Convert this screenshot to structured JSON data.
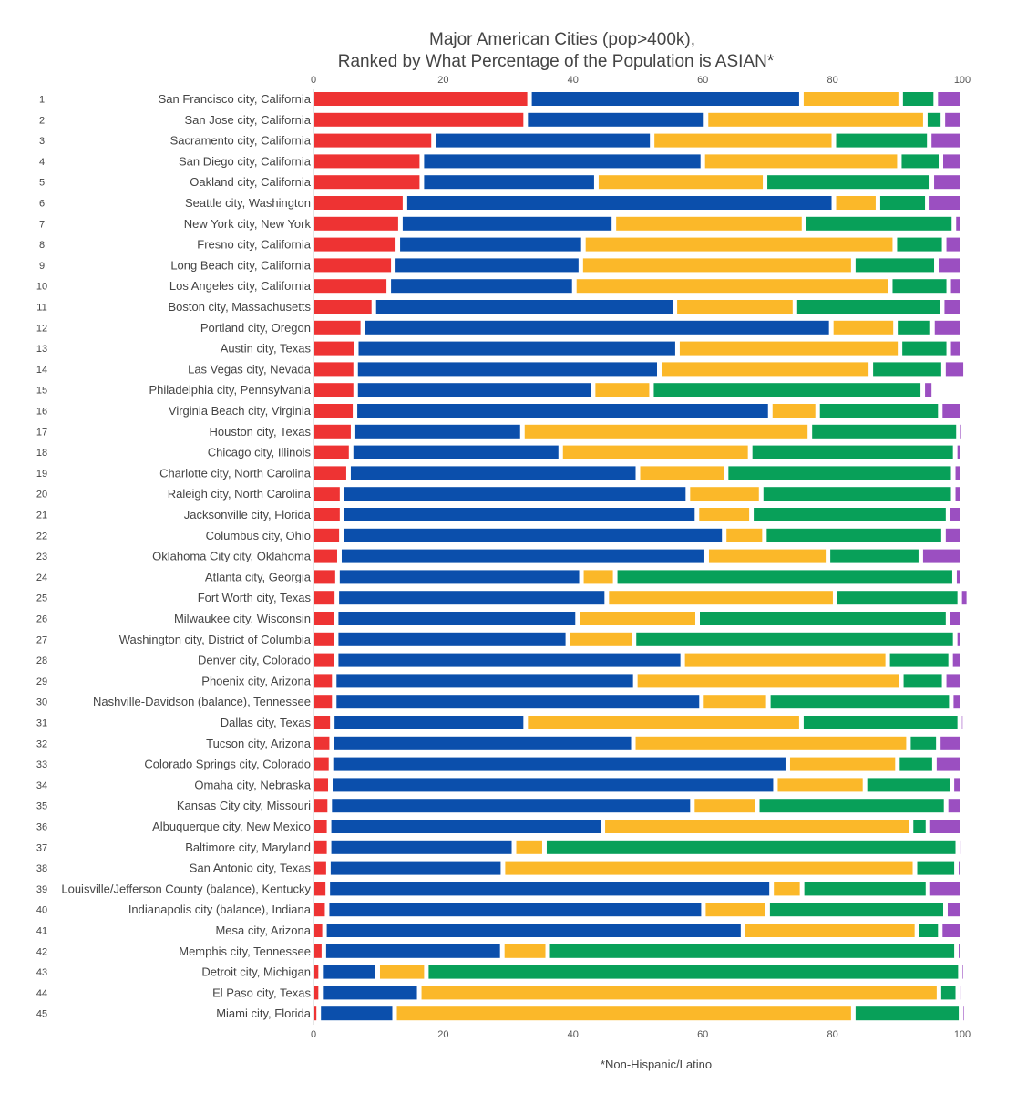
{
  "chart_data": {
    "type": "bar",
    "orientation": "horizontal",
    "stacked": true,
    "title_lines": [
      "Major American Cities (pop>400k),",
      "Ranked by What Percentage of the Population is ASIAN*"
    ],
    "footnote": "*Non-Hispanic/Latino",
    "xlim": [
      0,
      100
    ],
    "xticks": [
      "0",
      "20",
      "40",
      "60",
      "80",
      "100"
    ],
    "grid": false,
    "colors": [
      "#ee3333",
      "#0b4fac",
      "#fbb829",
      "#08a059",
      "#9b4fc1"
    ],
    "ranks": [
      "1",
      "2",
      "3",
      "4",
      "5",
      "6",
      "7",
      "8",
      "9",
      "10",
      "11",
      "12",
      "13",
      "14",
      "15",
      "16",
      "17",
      "18",
      "19",
      "20",
      "21",
      "22",
      "23",
      "24",
      "25",
      "26",
      "27",
      "28",
      "29",
      "30",
      "31",
      "32",
      "33",
      "34",
      "35",
      "36",
      "37",
      "38",
      "39",
      "40",
      "41",
      "42",
      "43",
      "44",
      "45"
    ],
    "categories": [
      "San Francisco city, California",
      "San Jose city, California",
      "Sacramento city, California",
      "San Diego city, California",
      "Oakland city, California",
      "Seattle city, Washington",
      "New York city, New York",
      "Fresno city, California",
      "Long Beach city, California",
      "Los Angeles city, California",
      "Boston city, Massachusetts",
      "Portland city, Oregon",
      "Austin city, Texas",
      "Las Vegas city, Nevada",
      "Philadelphia city, Pennsylvania",
      "Virginia Beach city, Virginia",
      "Houston city, Texas",
      "Chicago city, Illinois",
      "Charlotte city, North Carolina",
      "Raleigh city, North Carolina",
      "Jacksonville city, Florida",
      "Columbus city, Ohio",
      "Oklahoma City city, Oklahoma",
      "Atlanta city, Georgia",
      "Fort Worth city, Texas",
      "Milwaukee city, Wisconsin",
      "Washington city, District of Columbia",
      "Denver city, Colorado",
      "Phoenix city, Arizona",
      "Nashville-Davidson (balance), Tennessee",
      "Dallas city, Texas",
      "Tucson city, Arizona",
      "Colorado Springs city, Colorado",
      "Omaha city, Nebraska",
      "Kansas City city, Missouri",
      "Albuquerque city, New Mexico",
      "Baltimore city, Maryland",
      "San Antonio city, Texas",
      "Louisville/Jefferson County (balance), Kentucky",
      "Indianapolis city (balance), Indiana",
      "Mesa city, Arizona",
      "Memphis city, Tennessee",
      "Detroit city, Michigan",
      "El Paso city, Texas",
      "Miami city, Florida"
    ],
    "series": [
      {
        "values": [
          33.3,
          32.7,
          18.5,
          16.7,
          16.7,
          14.1,
          13.4,
          13.0,
          12.3,
          11.6,
          9.3,
          7.6,
          6.6,
          6.5,
          6.5,
          6.4,
          6.1,
          5.8,
          5.4,
          4.4,
          4.4,
          4.3,
          4.0,
          3.7,
          3.6,
          3.5,
          3.5,
          3.5,
          3.2,
          3.2,
          2.9,
          2.8,
          2.7,
          2.6,
          2.5,
          2.4,
          2.4,
          2.3,
          2.2,
          2.1,
          1.7,
          1.6,
          1.1,
          1.1,
          0.8
        ]
      },
      {
        "values": [
          41.9,
          27.8,
          33.7,
          43.3,
          26.9,
          66.1,
          32.9,
          28.6,
          28.9,
          28.6,
          46.4,
          72.2,
          49.5,
          46.8,
          36.6,
          64.0,
          26.1,
          32.3,
          44.6,
          53.3,
          54.7,
          59.0,
          56.6,
          37.6,
          41.6,
          37.2,
          35.7,
          53.4,
          46.4,
          56.6,
          29.8,
          46.5,
          70.4,
          68.6,
          55.9,
          42.2,
          28.5,
          26.9,
          68.4,
          58.0,
          64.5,
          27.5,
          8.8,
          15.2,
          11.7
        ]
      },
      {
        "values": [
          15.3,
          33.8,
          28.0,
          30.3,
          26.0,
          6.8,
          29.3,
          48.0,
          42.0,
          48.7,
          18.5,
          9.9,
          34.3,
          32.6,
          9.0,
          7.3,
          44.3,
          29.2,
          13.6,
          11.3,
          8.4,
          6.2,
          18.7,
          5.2,
          35.2,
          18.5,
          10.2,
          31.6,
          41.0,
          10.3,
          42.5,
          42.4,
          16.9,
          13.8,
          10.0,
          47.5,
          4.7,
          63.5,
          4.7,
          9.9,
          26.8,
          7.0,
          7.5,
          80.1,
          70.7
        ]
      },
      {
        "values": [
          5.4,
          2.7,
          14.7,
          6.4,
          25.7,
          7.6,
          23.1,
          7.6,
          12.8,
          9.0,
          22.7,
          5.7,
          7.5,
          11.2,
          41.8,
          18.9,
          22.9,
          31.6,
          35.0,
          29.6,
          30.3,
          27.6,
          14.3,
          52.3,
          19.2,
          38.6,
          49.5,
          9.7,
          6.6,
          28.2,
          24.4,
          4.6,
          5.7,
          13.4,
          29.1,
          2.6,
          63.7,
          6.4,
          19.4,
          27.4,
          3.6,
          63.0,
          82.3,
          2.9,
          16.6
        ]
      },
      {
        "values": [
          4.1,
          3.0,
          5.1,
          3.3,
          4.7,
          5.4,
          1.3,
          2.8,
          4.0,
          2.1,
          3.1,
          4.6,
          2.1,
          3.4,
          1.7,
          3.4,
          0.6,
          1.1,
          1.4,
          1.4,
          2.2,
          2.9,
          6.4,
          1.2,
          1.4,
          2.2,
          1.1,
          1.8,
          2.8,
          1.7,
          0.4,
          3.7,
          4.3,
          1.6,
          2.5,
          5.3,
          0.7,
          0.9,
          5.3,
          2.6,
          3.4,
          0.9,
          0.3,
          0.3,
          0.2
        ]
      }
    ]
  }
}
